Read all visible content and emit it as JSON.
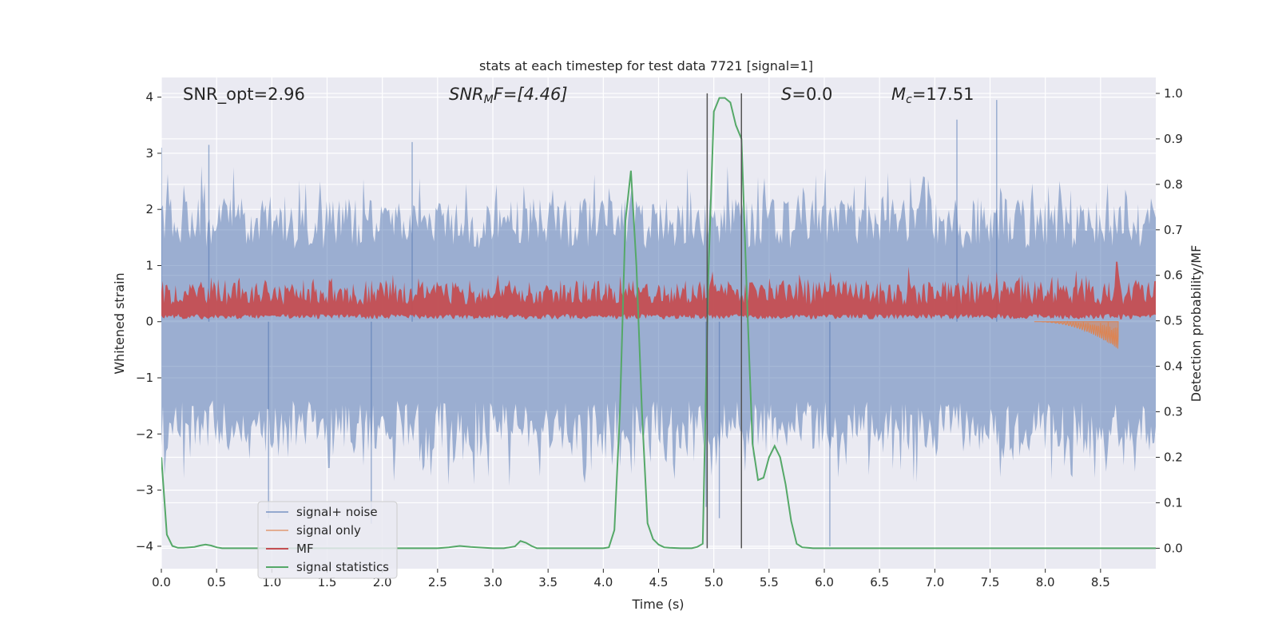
{
  "chart_data": {
    "type": "line",
    "title": "stats at each timestep for test data 7721 [signal=1]",
    "xlabel": "Time (s)",
    "ylabel": "Whitened strain",
    "y2label": "Detection probability/MF",
    "xlim": [
      0.0,
      9.0
    ],
    "ylim": [
      -4.4,
      4.35
    ],
    "y2lim": [
      -0.045,
      1.035
    ],
    "x_ticks": [
      "0.0",
      "0.5",
      "1.0",
      "1.5",
      "2.0",
      "2.5",
      "3.0",
      "3.5",
      "4.0",
      "4.5",
      "5.0",
      "5.5",
      "6.0",
      "6.5",
      "7.0",
      "7.5",
      "8.0",
      "8.5"
    ],
    "y_ticks": [
      "4",
      "3",
      "2",
      "1",
      "0",
      "−1",
      "−2",
      "−3",
      "−4"
    ],
    "y2_ticks": [
      "1.0",
      "0.9",
      "0.8",
      "0.7",
      "0.6",
      "0.5",
      "0.4",
      "0.3",
      "0.2",
      "0.1",
      "0.0"
    ],
    "grid": true,
    "vertical_lines_x": [
      4.94,
      5.25
    ],
    "annotations": {
      "snr_opt": "SNR_opt=2.96",
      "snr_mf_label": "SNR",
      "snr_mf_sub": "M",
      "snr_mf_tail": "F=[4.46]",
      "s_label": "S",
      "s_value": "=0.0",
      "mc_label": "M",
      "mc_sub": "c",
      "mc_value": "=17.51"
    },
    "legend": {
      "placement": "lower-left",
      "entries": [
        "signal+ noise",
        "signal only",
        "MF",
        "signal statistics"
      ]
    },
    "series": [
      {
        "name": "signal+ noise",
        "style": "dense noise band",
        "color": "#4c72b0",
        "approx_range": [
          -3.6,
          4.0
        ],
        "spikes": [
          [
            0.0,
            3.1
          ],
          [
            0.43,
            3.15
          ],
          [
            2.27,
            3.2
          ],
          [
            7.56,
            3.95
          ],
          [
            7.2,
            3.6
          ],
          [
            0.97,
            -3.5
          ],
          [
            1.9,
            -3.6
          ],
          [
            6.05,
            -4.0
          ],
          [
            4.93,
            -3.3
          ],
          [
            5.05,
            -3.5
          ]
        ]
      },
      {
        "name": "signal only",
        "style": "chirp near end",
        "color": "#dd8452",
        "x_start": 7.9,
        "x_end": 8.66,
        "peak_amplitude": 0.5
      },
      {
        "name": "MF",
        "style": "noisy band on secondary axis",
        "color": "#c44e52",
        "approx_range_y2": [
          0.5,
          0.62
        ],
        "peak": [
          8.65,
          0.63
        ]
      },
      {
        "name": "signal statistics",
        "color": "#55a868",
        "x": [
          0.0,
          0.05,
          0.1,
          0.15,
          0.2,
          0.25,
          0.3,
          0.35,
          0.4,
          0.45,
          0.5,
          0.55,
          1.0,
          1.5,
          2.0,
          2.5,
          2.6,
          2.7,
          2.8,
          3.0,
          3.1,
          3.2,
          3.25,
          3.3,
          3.35,
          3.4,
          3.5,
          4.0,
          4.05,
          4.1,
          4.15,
          4.2,
          4.25,
          4.3,
          4.35,
          4.4,
          4.45,
          4.5,
          4.55,
          4.6,
          4.7,
          4.8,
          4.85,
          4.9,
          4.95,
          5.0,
          5.05,
          5.1,
          5.15,
          5.2,
          5.25,
          5.3,
          5.35,
          5.4,
          5.45,
          5.5,
          5.55,
          5.6,
          5.65,
          5.7,
          5.75,
          5.8,
          5.85,
          5.9,
          6.0,
          7.0,
          8.0,
          9.0
        ],
        "values": [
          0.2,
          0.03,
          0.005,
          0.001,
          0.001,
          0.002,
          0.003,
          0.006,
          0.008,
          0.006,
          0.002,
          0.0,
          0.0,
          0.0,
          0.0,
          0.0,
          0.002,
          0.005,
          0.003,
          0.0,
          0.0,
          0.004,
          0.016,
          0.012,
          0.005,
          0.0,
          0.0,
          0.0,
          0.002,
          0.04,
          0.3,
          0.72,
          0.83,
          0.62,
          0.3,
          0.055,
          0.02,
          0.008,
          0.002,
          0.001,
          0.0,
          0.0,
          0.003,
          0.01,
          0.6,
          0.96,
          0.99,
          0.99,
          0.98,
          0.93,
          0.9,
          0.55,
          0.23,
          0.15,
          0.155,
          0.2,
          0.225,
          0.2,
          0.14,
          0.06,
          0.01,
          0.002,
          0.001,
          0.0,
          0.0,
          0.0,
          0.0,
          0.0
        ]
      }
    ]
  }
}
